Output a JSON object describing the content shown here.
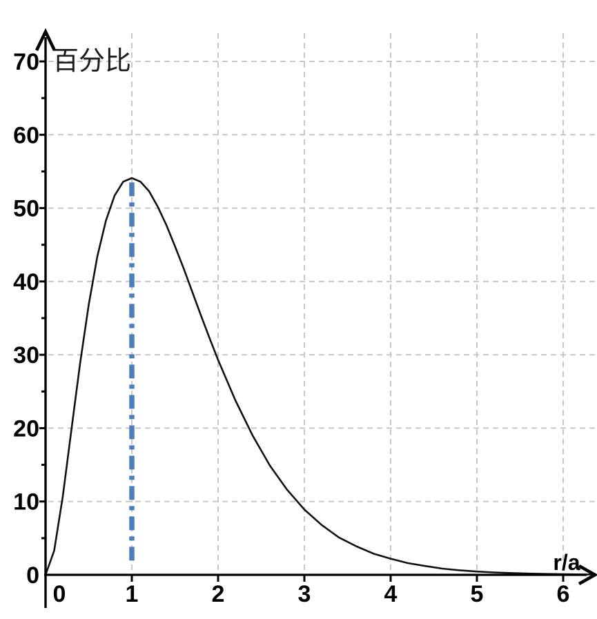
{
  "chart_data": {
    "type": "line",
    "title": "",
    "xlabel": "r/a",
    "ylabel": "百分比",
    "xlim": [
      0,
      6.37
    ],
    "ylim": [
      0,
      70
    ],
    "x_ticks": [
      0,
      1,
      2,
      3,
      4,
      5,
      6
    ],
    "y_ticks": [
      0,
      10,
      20,
      30,
      40,
      50,
      60,
      70
    ],
    "y_minor_ticks": [
      5,
      15,
      25,
      35,
      45,
      55,
      65
    ],
    "grid": true,
    "legend": "none",
    "style": {
      "curve_color": "#111111",
      "axis_color": "#000000",
      "grid_color": "#c7c7c7",
      "marker_color": "#4a7ebd",
      "background": "#ffffff"
    },
    "series": [
      {
        "points": [
          [
            0,
            0
          ],
          [
            0.1,
            3.3
          ],
          [
            0.2,
            10.7
          ],
          [
            0.3,
            19.8
          ],
          [
            0.4,
            28.8
          ],
          [
            0.5,
            36.8
          ],
          [
            0.6,
            43.4
          ],
          [
            0.7,
            48.3
          ],
          [
            0.8,
            51.7
          ],
          [
            0.9,
            53.6
          ],
          [
            1.0,
            54.1
          ],
          [
            1.1,
            53.6
          ],
          [
            1.2,
            52.3
          ],
          [
            1.3,
            50.2
          ],
          [
            1.4,
            47.7
          ],
          [
            1.5,
            44.8
          ],
          [
            1.6,
            41.8
          ],
          [
            1.7,
            38.6
          ],
          [
            1.8,
            35.4
          ],
          [
            1.9,
            32.3
          ],
          [
            2.0,
            29.3
          ],
          [
            2.2,
            23.8
          ],
          [
            2.4,
            19.0
          ],
          [
            2.6,
            14.9
          ],
          [
            2.8,
            11.6
          ],
          [
            3.0,
            8.9
          ],
          [
            3.2,
            6.8
          ],
          [
            3.4,
            5.1
          ],
          [
            3.6,
            3.9
          ],
          [
            3.8,
            2.9
          ],
          [
            4.0,
            2.2
          ],
          [
            4.2,
            1.6
          ],
          [
            4.4,
            1.2
          ],
          [
            4.6,
            0.85
          ],
          [
            4.8,
            0.62
          ],
          [
            5.0,
            0.45
          ],
          [
            5.2,
            0.33
          ],
          [
            5.4,
            0.24
          ],
          [
            5.6,
            0.17
          ],
          [
            5.8,
            0.12
          ],
          [
            6.0,
            0.09
          ],
          [
            6.2,
            0.06
          ],
          [
            6.35,
            0.05
          ]
        ]
      }
    ],
    "annotations": [
      {
        "type": "vline",
        "x": 1,
        "y_from": 1.4,
        "y_to": 53.5,
        "style": "dash-dot",
        "color": "#4a7ebd"
      }
    ]
  }
}
